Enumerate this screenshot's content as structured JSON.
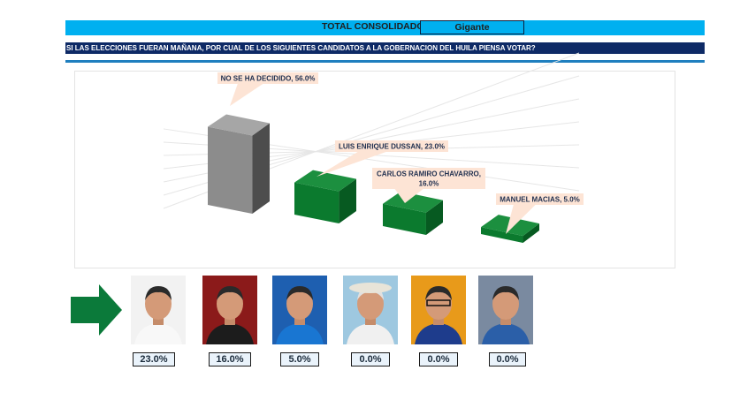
{
  "header": {
    "title": "TOTAL CONSOLIDADO",
    "location": "Gigante",
    "question": "SI LAS ELECCIONES FUERAN MAÑANA, POR CUAL DE LOS SIGUIENTES CANDIDATOS A LA GOBERNACION DEL HUILA PIENSA VOTAR?"
  },
  "chart_data": {
    "type": "bar",
    "categories": [
      "NO SE HA DECIDIDO",
      "LUIS ENRIQUE DUSSAN",
      "CARLOS RAMIRO CHAVARRO",
      "MANUEL MACIAS"
    ],
    "values": [
      56.0,
      23.0,
      16.0,
      5.0
    ],
    "data_labels": [
      "NO SE HA DECIDIDO, 56.0%",
      "LUIS ENRIQUE DUSSAN, 23.0%",
      "CARLOS RAMIRO CHAVARRO, 16.0%",
      "MANUEL MACIAS, 5.0%"
    ],
    "colors": [
      "#7f7f7f",
      "#0b7a2e",
      "#0b7a2e",
      "#0b7a2e"
    ],
    "ylim": [
      0,
      60
    ],
    "grid": true
  },
  "candidates": [
    {
      "pct": "23.0%",
      "photo": "candidate-photo-1"
    },
    {
      "pct": "16.0%",
      "photo": "candidate-photo-2"
    },
    {
      "pct": "5.0%",
      "photo": "candidate-photo-3"
    },
    {
      "pct": "0.0%",
      "photo": "candidate-photo-4"
    },
    {
      "pct": "0.0%",
      "photo": "candidate-photo-5"
    },
    {
      "pct": "0.0%",
      "photo": "candidate-photo-6"
    }
  ],
  "arrow_color": "#0b7a3a"
}
